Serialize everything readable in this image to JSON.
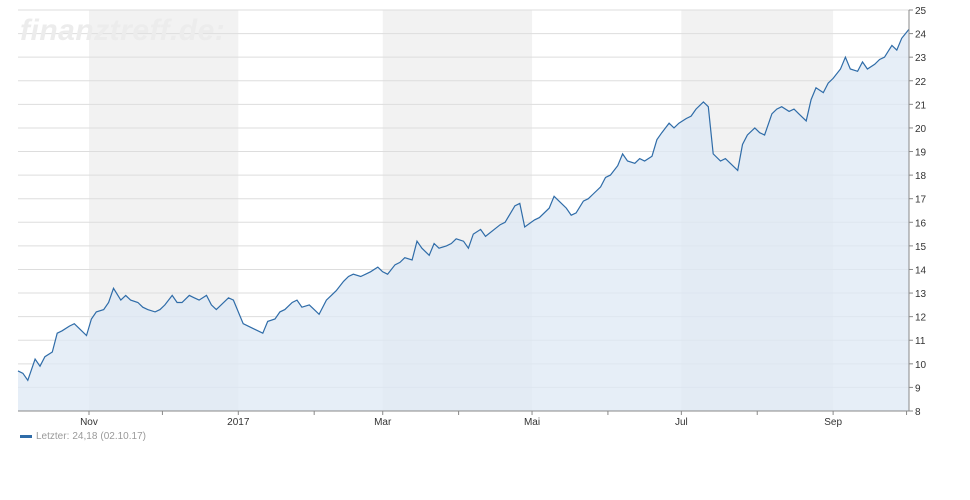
{
  "watermark": "finanztreff.de:",
  "legend": {
    "label": "Letzter:",
    "value": "24,18",
    "date": "(02.10.17)"
  },
  "colors": {
    "line": "#2f6ca8",
    "area": "#dde8f4",
    "band": "#f2f2f2",
    "grid": "#dddddd",
    "axis": "#888888"
  },
  "chart_data": {
    "type": "area",
    "title": "",
    "xlabel": "",
    "ylabel": "",
    "ylim": [
      8,
      25
    ],
    "yticks": [
      8,
      9,
      10,
      11,
      12,
      13,
      14,
      15,
      16,
      17,
      18,
      19,
      20,
      21,
      22,
      23,
      24,
      25
    ],
    "y_axis_position": "right",
    "grid": true,
    "x_labels": [
      "Nov",
      "2017",
      "Mar",
      "Mai",
      "Jul",
      "Sep"
    ],
    "x_range": [
      "2016-10-03",
      "2017-10-02"
    ],
    "month_starts": [
      "2016-10-01",
      "2016-11-01",
      "2016-12-01",
      "2017-01-01",
      "2017-02-01",
      "2017-03-01",
      "2017-04-01",
      "2017-05-01",
      "2017-06-01",
      "2017-07-01",
      "2017-08-01",
      "2017-09-01",
      "2017-10-01"
    ],
    "shaded_bands": [
      [
        "2016-11-01",
        "2017-01-01"
      ],
      [
        "2017-03-01",
        "2017-05-01"
      ],
      [
        "2017-07-01",
        "2017-09-01"
      ]
    ],
    "x": [
      "2016-10-03",
      "2016-10-05",
      "2016-10-07",
      "2016-10-10",
      "2016-10-12",
      "2016-10-14",
      "2016-10-17",
      "2016-10-19",
      "2016-10-21",
      "2016-10-24",
      "2016-10-26",
      "2016-10-28",
      "2016-10-31",
      "2016-11-02",
      "2016-11-04",
      "2016-11-07",
      "2016-11-09",
      "2016-11-11",
      "2016-11-14",
      "2016-11-16",
      "2016-11-18",
      "2016-11-21",
      "2016-11-23",
      "2016-11-25",
      "2016-11-28",
      "2016-11-30",
      "2016-12-02",
      "2016-12-05",
      "2016-12-07",
      "2016-12-09",
      "2016-12-12",
      "2016-12-14",
      "2016-12-16",
      "2016-12-19",
      "2016-12-21",
      "2016-12-23",
      "2016-12-28",
      "2016-12-30",
      "2017-01-03",
      "2017-01-05",
      "2017-01-09",
      "2017-01-11",
      "2017-01-13",
      "2017-01-16",
      "2017-01-18",
      "2017-01-20",
      "2017-01-23",
      "2017-01-25",
      "2017-01-27",
      "2017-01-30",
      "2017-02-01",
      "2017-02-03",
      "2017-02-06",
      "2017-02-08",
      "2017-02-10",
      "2017-02-13",
      "2017-02-15",
      "2017-02-17",
      "2017-02-20",
      "2017-02-22",
      "2017-02-24",
      "2017-02-27",
      "2017-03-01",
      "2017-03-03",
      "2017-03-06",
      "2017-03-08",
      "2017-03-10",
      "2017-03-13",
      "2017-03-15",
      "2017-03-17",
      "2017-03-20",
      "2017-03-22",
      "2017-03-24",
      "2017-03-27",
      "2017-03-29",
      "2017-03-31",
      "2017-04-03",
      "2017-04-05",
      "2017-04-07",
      "2017-04-10",
      "2017-04-12",
      "2017-04-18",
      "2017-04-20",
      "2017-04-24",
      "2017-04-26",
      "2017-04-28",
      "2017-05-02",
      "2017-05-04",
      "2017-05-08",
      "2017-05-10",
      "2017-05-12",
      "2017-05-15",
      "2017-05-17",
      "2017-05-19",
      "2017-05-22",
      "2017-05-24",
      "2017-05-26",
      "2017-05-29",
      "2017-05-31",
      "2017-06-02",
      "2017-06-05",
      "2017-06-07",
      "2017-06-09",
      "2017-06-12",
      "2017-06-14",
      "2017-06-16",
      "2017-06-19",
      "2017-06-21",
      "2017-06-23",
      "2017-06-26",
      "2017-06-28",
      "2017-06-30",
      "2017-07-03",
      "2017-07-05",
      "2017-07-07",
      "2017-07-10",
      "2017-07-12",
      "2017-07-14",
      "2017-07-17",
      "2017-07-19",
      "2017-07-21",
      "2017-07-24",
      "2017-07-26",
      "2017-07-28",
      "2017-07-31",
      "2017-08-02",
      "2017-08-04",
      "2017-08-07",
      "2017-08-09",
      "2017-08-11",
      "2017-08-14",
      "2017-08-16",
      "2017-08-18",
      "2017-08-21",
      "2017-08-23",
      "2017-08-25",
      "2017-08-28",
      "2017-08-30",
      "2017-09-01",
      "2017-09-04",
      "2017-09-06",
      "2017-09-08",
      "2017-09-11",
      "2017-09-13",
      "2017-09-15",
      "2017-09-18",
      "2017-09-20",
      "2017-09-22",
      "2017-09-25",
      "2017-09-27",
      "2017-09-29",
      "2017-10-02"
    ],
    "series": [
      {
        "values": [
          9.7,
          9.6,
          9.3,
          10.2,
          9.9,
          10.3,
          10.5,
          11.3,
          11.4,
          11.6,
          11.7,
          11.5,
          11.2,
          11.9,
          12.2,
          12.3,
          12.6,
          13.2,
          12.7,
          12.9,
          12.7,
          12.6,
          12.4,
          12.3,
          12.2,
          12.3,
          12.5,
          12.9,
          12.6,
          12.6,
          12.9,
          12.8,
          12.7,
          12.9,
          12.5,
          12.3,
          12.8,
          12.7,
          11.7,
          11.6,
          11.4,
          11.3,
          11.8,
          11.9,
          12.2,
          12.3,
          12.6,
          12.7,
          12.4,
          12.5,
          12.3,
          12.1,
          12.7,
          12.9,
          13.1,
          13.5,
          13.7,
          13.8,
          13.7,
          13.8,
          13.9,
          14.1,
          13.9,
          13.8,
          14.2,
          14.3,
          14.5,
          14.4,
          15.2,
          14.9,
          14.6,
          15.1,
          14.9,
          15.0,
          15.1,
          15.3,
          15.2,
          14.9,
          15.5,
          15.7,
          15.4,
          15.9,
          16.0,
          16.7,
          16.8,
          15.8,
          16.1,
          16.2,
          16.6,
          17.1,
          16.9,
          16.6,
          16.3,
          16.4,
          16.9,
          17.0,
          17.2,
          17.5,
          17.9,
          18.0,
          18.4,
          18.9,
          18.6,
          18.5,
          18.7,
          18.6,
          18.8,
          19.5,
          19.8,
          20.2,
          20.0,
          20.2,
          20.4,
          20.5,
          20.8,
          21.1,
          20.9,
          18.9,
          18.6,
          18.7,
          18.5,
          18.2,
          19.3,
          19.7,
          20.0,
          19.8,
          19.7,
          20.6,
          20.8,
          20.9,
          20.7,
          20.8,
          20.6,
          20.3,
          21.2,
          21.7,
          21.5,
          21.9,
          22.1,
          22.5,
          23.0,
          22.5,
          22.4,
          22.8,
          22.5,
          22.7,
          22.9,
          23.0,
          23.5,
          23.3,
          23.8,
          24.18
        ]
      }
    ]
  }
}
